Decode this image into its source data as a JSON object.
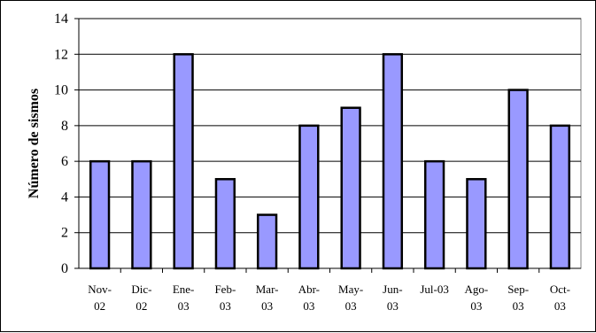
{
  "chart_data": {
    "type": "bar",
    "title": "",
    "xlabel": "",
    "ylabel": "Número de sismos",
    "ylim": [
      0,
      14
    ],
    "yticks": [
      0,
      2,
      4,
      6,
      8,
      10,
      12,
      14
    ],
    "grid": true,
    "legend": "none",
    "bar_color": "#9999ff",
    "categories": [
      [
        "Nov-",
        "02"
      ],
      [
        "Dic-",
        "02"
      ],
      [
        "Ene-",
        "03"
      ],
      [
        "Feb-",
        "03"
      ],
      [
        "Mar-",
        "03"
      ],
      [
        "Abr-",
        "03"
      ],
      [
        "May-",
        "03"
      ],
      [
        "Jun-",
        "03"
      ],
      [
        "Jul-03",
        ""
      ],
      [
        "Ago-",
        "03"
      ],
      [
        "Sep-",
        "03"
      ],
      [
        "Oct-",
        "03"
      ]
    ],
    "values": [
      6,
      6,
      12,
      5,
      3,
      8,
      9,
      12,
      6,
      5,
      10,
      8
    ]
  }
}
